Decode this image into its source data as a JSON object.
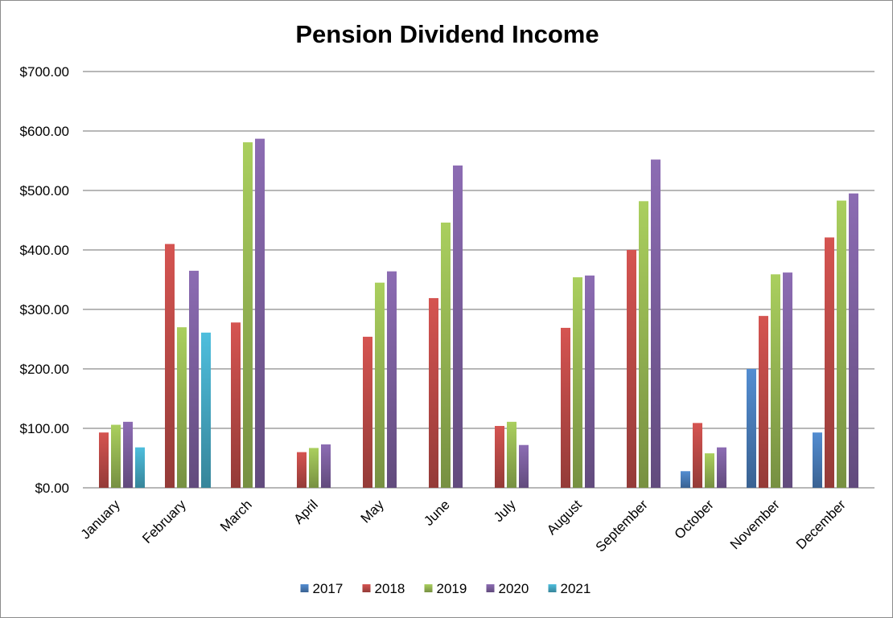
{
  "chart_data": {
    "type": "bar",
    "title": "Pension Dividend Income",
    "xlabel": "",
    "ylabel": "",
    "ylim": [
      0,
      700
    ],
    "yticks": [
      0,
      100,
      200,
      300,
      400,
      500,
      600,
      700
    ],
    "ytick_labels": [
      "$0.00",
      "$100.00",
      "$200.00",
      "$300.00",
      "$400.00",
      "$500.00",
      "$600.00",
      "$700.00"
    ],
    "grid": true,
    "legend_position": "bottom",
    "categories": [
      "January",
      "February",
      "March",
      "April",
      "May",
      "June",
      "July",
      "August",
      "September",
      "October",
      "November",
      "December"
    ],
    "series": [
      {
        "name": "2017",
        "color": "#4a7ebb",
        "values": [
          0,
          0,
          0,
          0,
          0,
          0,
          0,
          0,
          0,
          28,
          200,
          93
        ]
      },
      {
        "name": "2018",
        "color": "#be4b48",
        "values": [
          93,
          410,
          278,
          60,
          254,
          319,
          104,
          269,
          400,
          109,
          289,
          421
        ]
      },
      {
        "name": "2019",
        "color": "#98b954",
        "values": [
          106,
          270,
          581,
          67,
          345,
          446,
          111,
          354,
          482,
          58,
          359,
          483
        ]
      },
      {
        "name": "2020",
        "color": "#7d60a0",
        "values": [
          111,
          365,
          587,
          73,
          364,
          542,
          72,
          357,
          552,
          68,
          362,
          495
        ]
      },
      {
        "name": "2021",
        "color": "#46aac5",
        "values": [
          68,
          261,
          0,
          0,
          0,
          0,
          0,
          0,
          0,
          0,
          0,
          0
        ]
      }
    ]
  }
}
